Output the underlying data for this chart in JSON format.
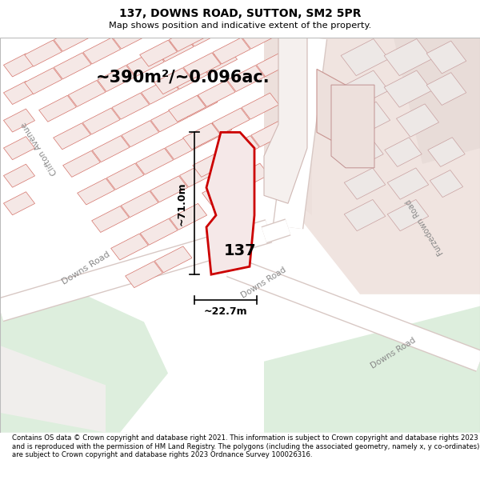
{
  "title_line1": "137, DOWNS ROAD, SUTTON, SM2 5PR",
  "title_line2": "Map shows position and indicative extent of the property.",
  "footer_text": "Contains OS data © Crown copyright and database right 2021. This information is subject to Crown copyright and database rights 2023 and is reproduced with the permission of HM Land Registry. The polygons (including the associated geometry, namely x, y co-ordinates) are subject to Crown copyright and database rights 2023 Ordnance Survey 100026316.",
  "area_label": "~390m²/~0.096ac.",
  "dim_height": "~71.0m",
  "dim_width": "~22.7m",
  "label_137": "137",
  "building_fill": "#f5e8e6",
  "building_outline": "#d4736a",
  "highlight_outline": "#cc0000",
  "road_fill": "#f0e8e8",
  "road_edge": "#d4b4b0",
  "green1": "#ddeedd",
  "green2": "#c8ddc8",
  "white_path": "#f8f8f8",
  "pink_zone": "#f0e0dc",
  "gray_bldg": "#e8e0e0",
  "gray_bldg_edge": "#d4b4b4"
}
